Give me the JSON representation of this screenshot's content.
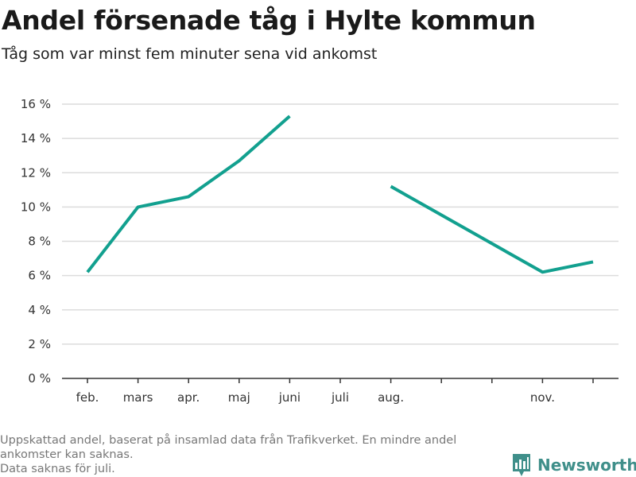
{
  "title": "Andel försenade tåg i Hylte kommun",
  "subtitle": "Tåg som var minst fem minuter sena vid ankomst",
  "notes": [
    "Uppskattad andel, baserat på insamlad data från Trafikverket. En mindre andel",
    "ankomster kan saknas.",
    "Data saknas för juli."
  ],
  "brand": {
    "name": "Newsworthy",
    "icon": "bar-chart-icon",
    "color": "#3f8f8a"
  },
  "chart_data": {
    "type": "line",
    "title": "Andel försenade tåg i Hylte kommun",
    "subtitle": "Tåg som var minst fem minuter sena vid ankomst",
    "xlabel": "",
    "ylabel": "",
    "categories": [
      "feb.",
      "mars",
      "apr.",
      "maj",
      "juni",
      "juli",
      "aug.",
      "",
      "",
      "nov.",
      ""
    ],
    "series": [
      {
        "values": [
          6.2,
          10.0,
          10.6,
          12.7,
          15.3,
          null,
          11.2,
          null,
          null,
          6.2,
          6.8
        ],
        "color": "#12a08f"
      }
    ],
    "yticks": [
      0,
      2,
      4,
      6,
      8,
      10,
      12,
      14,
      16
    ],
    "ytick_suffix": " %",
    "ylim": [
      0,
      16
    ],
    "grid": true,
    "legend": "none"
  }
}
